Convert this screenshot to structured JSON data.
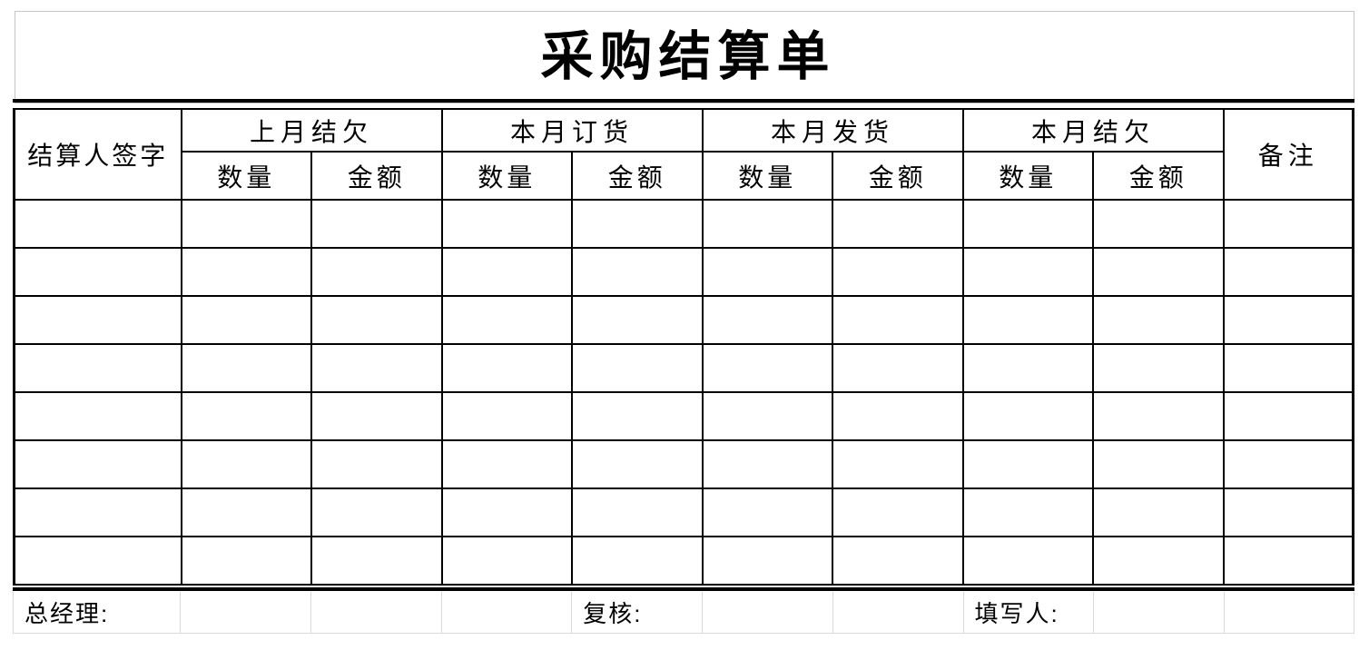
{
  "title": "采购结算单",
  "table": {
    "signer_header": "结算人签字",
    "remarks_header": "备注",
    "groups": [
      {
        "label": "上月结欠",
        "sub": [
          "数量",
          "金额"
        ]
      },
      {
        "label": "本月订货",
        "sub": [
          "数量",
          "金额"
        ]
      },
      {
        "label": "本月发货",
        "sub": [
          "数量",
          "金额"
        ]
      },
      {
        "label": "本月结欠",
        "sub": [
          "数量",
          "金额"
        ]
      }
    ],
    "body_row_count": 8,
    "column_count": 10
  },
  "footer": {
    "general_manager_label": "总经理:",
    "reviewer_label": "复核:",
    "preparer_label": "填写人:"
  },
  "colors": {
    "table_border": "#000000",
    "title_box_border": "#c6c6c6",
    "footer_gridline": "#d9d9d9",
    "text": "#000000",
    "background": "#ffffff"
  }
}
